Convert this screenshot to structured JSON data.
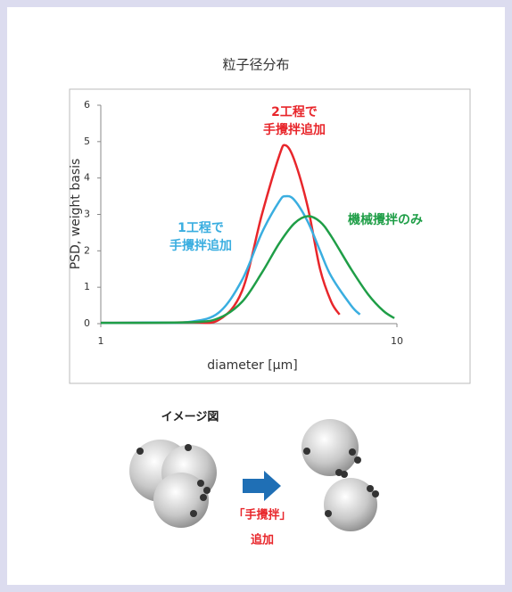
{
  "chart_data": {
    "type": "line",
    "title": "粒子径分布",
    "x_label": "diameter [μm]",
    "y_label": "PSD, weight basis",
    "xlim": [
      1,
      10
    ],
    "xticks": [
      1,
      10
    ],
    "x_log": true,
    "ylim": [
      0,
      6
    ],
    "yticks": [
      0,
      1,
      2,
      3,
      4,
      5,
      6
    ],
    "grid": false,
    "series": [
      {
        "name": [
          "2工程で",
          "手攪拌追加"
        ],
        "color": "#e8262b",
        "x": [
          1,
          1.5,
          2,
          2.5,
          3,
          3.5,
          4,
          4.2,
          4.5,
          5,
          5.5,
          6,
          6.4
        ],
        "values": [
          0.02,
          0.03,
          0.04,
          0.1,
          0.9,
          3.0,
          4.6,
          4.9,
          4.5,
          3.2,
          1.5,
          0.6,
          0.25
        ]
      },
      {
        "name": [
          "1工程で",
          "手攪拌追加"
        ],
        "color": "#3aaee0",
        "x": [
          1,
          1.5,
          2,
          2.5,
          3,
          3.5,
          4,
          4.2,
          4.5,
          5,
          5.5,
          6,
          7,
          7.5
        ],
        "values": [
          0.02,
          0.03,
          0.05,
          0.3,
          1.2,
          2.5,
          3.35,
          3.5,
          3.4,
          2.8,
          2.0,
          1.3,
          0.5,
          0.25
        ]
      },
      {
        "name": [
          "機械攪拌のみ"
        ],
        "color": "#1f9e47",
        "x": [
          1,
          2,
          2.5,
          3,
          3.5,
          4,
          4.5,
          5,
          5.5,
          6,
          7,
          8,
          9,
          9.8
        ],
        "values": [
          0.02,
          0.04,
          0.15,
          0.6,
          1.4,
          2.2,
          2.75,
          2.95,
          2.8,
          2.4,
          1.5,
          0.8,
          0.35,
          0.15
        ]
      }
    ]
  },
  "illustration": {
    "title": "イメージ図",
    "arrow_label": [
      "「手攪拌」",
      "追加"
    ]
  }
}
